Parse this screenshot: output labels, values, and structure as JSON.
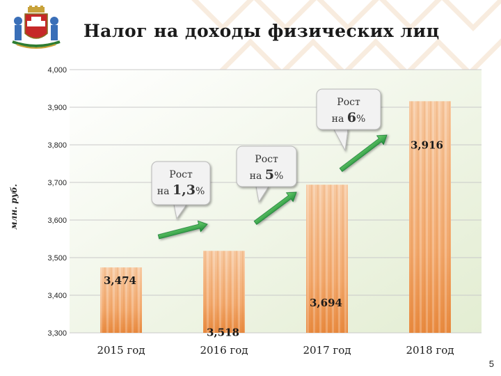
{
  "slide": {
    "title": "Налог на доходы физических лиц",
    "page_number": "5",
    "accent_color": "#eb8a33",
    "arrow_color": "#2ea84a"
  },
  "chart_data": {
    "type": "bar",
    "title": "Налог на доходы физических лиц",
    "xlabel": "",
    "ylabel": "млн. руб.",
    "categories": [
      "2015 год",
      "2016 год",
      "2017 год",
      "2018 год"
    ],
    "values": [
      3474,
      3518,
      3694,
      3916
    ],
    "value_labels": [
      "3,474",
      "3,518",
      "3,694",
      "3,916"
    ],
    "ylim": [
      3300,
      4000
    ],
    "yticks": [
      3300,
      3400,
      3500,
      3600,
      3700,
      3800,
      3900,
      4000
    ],
    "ytick_labels": [
      "3,300",
      "3,400",
      "3,500",
      "3,600",
      "3,700",
      "3,800",
      "3,900",
      "4,000"
    ],
    "grid": true,
    "legend": "none",
    "annotations": [
      {
        "line1": "Рост",
        "line2_prefix": "на ",
        "value": "1,3",
        "suffix": "%"
      },
      {
        "line1": "Рост",
        "line2_prefix": "на ",
        "value": "5",
        "suffix": "%"
      },
      {
        "line1": "Рост",
        "line2_prefix": "на ",
        "value": "6",
        "suffix": "%"
      }
    ]
  }
}
